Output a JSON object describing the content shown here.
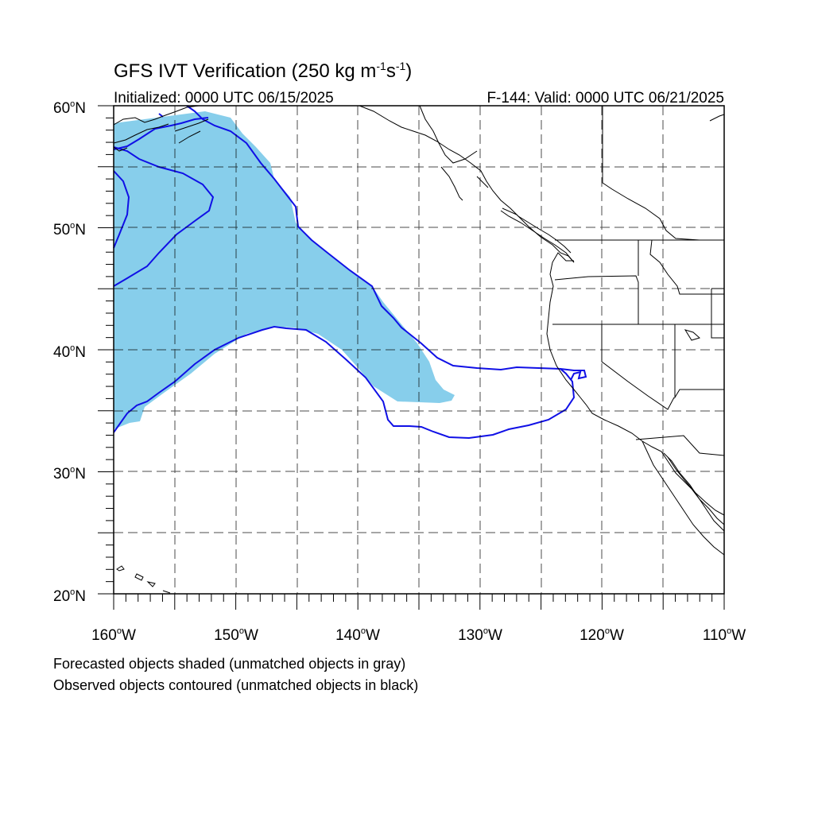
{
  "title": {
    "main": "GFS IVT Verification (250 kg m",
    "sup1": "-1",
    "mid": "s",
    "sup2": "-1",
    "end": ")"
  },
  "subtitle": {
    "left": "Initialized: 0000 UTC 06/15/2025",
    "right": "F-144: Valid: 0000 UTC 06/21/2025"
  },
  "axes": {
    "lat_labels": [
      {
        "num": "60",
        "suffix": "N"
      },
      {
        "num": "50",
        "suffix": "N"
      },
      {
        "num": "40",
        "suffix": "N"
      },
      {
        "num": "30",
        "suffix": "N"
      },
      {
        "num": "20",
        "suffix": "N"
      }
    ],
    "lon_labels": [
      {
        "num": "160",
        "suffix": "W"
      },
      {
        "num": "150",
        "suffix": "W"
      },
      {
        "num": "140",
        "suffix": "W"
      },
      {
        "num": "130",
        "suffix": "W"
      },
      {
        "num": "120",
        "suffix": "W"
      },
      {
        "num": "110",
        "suffix": "W"
      }
    ],
    "lat_range": [
      20,
      60
    ],
    "lon_range": [
      -160,
      -110
    ],
    "grid_spacing_deg": 5,
    "grid": true,
    "degree_symbol": "o"
  },
  "caption": {
    "line1": "Forecasted objects shaded (unmatched objects in gray)",
    "line2": "Observed objects contoured (unmatched objects in black)"
  },
  "colors": {
    "forecast_fill": "#87CEEB",
    "observed_contour": "#1010E6",
    "coastline": "#000000",
    "grid": "#000000"
  }
}
